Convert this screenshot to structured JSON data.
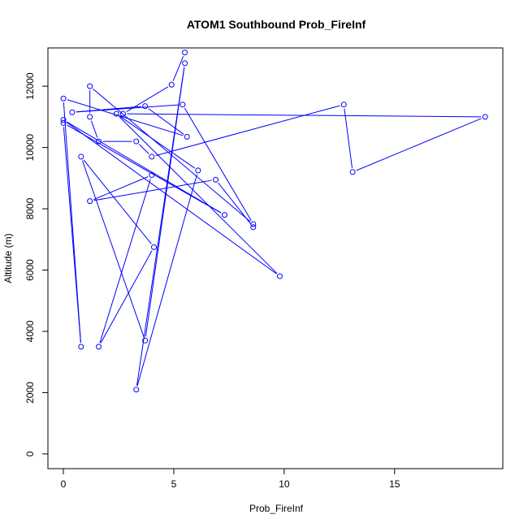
{
  "chart_data": {
    "type": "line",
    "title": "ATOM1 Southbound Prob_FireInf",
    "xlabel": "Prob_FireInf",
    "ylabel": "Altitude (m)",
    "xlim": [
      -0.7,
      19.9
    ],
    "ylim": [
      -480,
      13250
    ],
    "xticks": [
      0,
      5,
      10,
      15
    ],
    "yticks": [
      0,
      2000,
      4000,
      6000,
      8000,
      10000,
      12000
    ],
    "grid": false,
    "legend": "none",
    "series_color": "#0000ff",
    "marker": "open-circle",
    "points": [
      {
        "x": 5.5,
        "y": 13100
      },
      {
        "x": 4.9,
        "y": 12050
      },
      {
        "x": 2.7,
        "y": 11100
      },
      {
        "x": 19.1,
        "y": 11000
      },
      {
        "x": 13.1,
        "y": 9200
      },
      {
        "x": 12.7,
        "y": 11400
      },
      {
        "x": 4.0,
        "y": 9700
      },
      {
        "x": 3.3,
        "y": 10200
      },
      {
        "x": 1.6,
        "y": 10200
      },
      {
        "x": 1.2,
        "y": 11000
      },
      {
        "x": 1.2,
        "y": 12000
      },
      {
        "x": 8.6,
        "y": 7500
      },
      {
        "x": 5.4,
        "y": 11400
      },
      {
        "x": 0.4,
        "y": 11150
      },
      {
        "x": 3.7,
        "y": 11350
      },
      {
        "x": 5.6,
        "y": 10350
      },
      {
        "x": 0.0,
        "y": 11600
      },
      {
        "x": 0.8,
        "y": 3500
      },
      {
        "x": 0.0,
        "y": 10800
      },
      {
        "x": 7.3,
        "y": 7800
      },
      {
        "x": 0.0,
        "y": 10900
      },
      {
        "x": 9.8,
        "y": 5800
      },
      {
        "x": 2.4,
        "y": 11100
      },
      {
        "x": 6.1,
        "y": 9250
      },
      {
        "x": 3.3,
        "y": 2100
      },
      {
        "x": 5.5,
        "y": 12750
      },
      {
        "x": 3.7,
        "y": 3700
      },
      {
        "x": 0.8,
        "y": 9700
      },
      {
        "x": 4.1,
        "y": 6750
      },
      {
        "x": 1.6,
        "y": 3500
      },
      {
        "x": 4.0,
        "y": 9100
      },
      {
        "x": 1.2,
        "y": 8250
      },
      {
        "x": 6.9,
        "y": 8950
      },
      {
        "x": 8.6,
        "y": 7400
      }
    ]
  }
}
